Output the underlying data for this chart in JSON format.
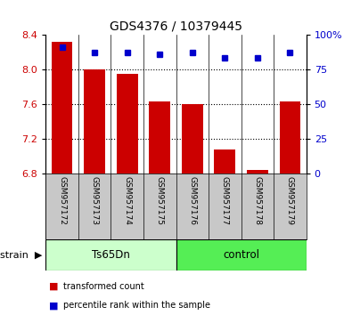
{
  "title": "GDS4376 / 10379445",
  "samples": [
    "GSM957172",
    "GSM957173",
    "GSM957174",
    "GSM957175",
    "GSM957176",
    "GSM957177",
    "GSM957178",
    "GSM957179"
  ],
  "transformed_counts": [
    8.32,
    8.0,
    7.95,
    7.63,
    7.6,
    7.07,
    6.84,
    7.63
  ],
  "percentile_ranks": [
    91,
    87,
    87,
    86,
    87,
    83,
    83,
    87
  ],
  "ylim_left": [
    6.8,
    8.4
  ],
  "ylim_right": [
    0,
    100
  ],
  "yticks_left": [
    6.8,
    7.2,
    7.6,
    8.0,
    8.4
  ],
  "yticks_right": [
    0,
    25,
    50,
    75,
    100
  ],
  "group_defs": [
    {
      "name": "Ts65Dn",
      "start": 0,
      "end": 3,
      "color": "#ccffcc"
    },
    {
      "name": "control",
      "start": 4,
      "end": 7,
      "color": "#55ee55"
    }
  ],
  "bar_color": "#cc0000",
  "dot_color": "#0000cc",
  "background_color": "#ffffff",
  "tick_area_color": "#c8c8c8",
  "legend_items": [
    {
      "label": "transformed count",
      "color": "#cc0000"
    },
    {
      "label": "percentile rank within the sample",
      "color": "#0000cc"
    }
  ],
  "strain_label": "strain",
  "base_value": 6.8
}
